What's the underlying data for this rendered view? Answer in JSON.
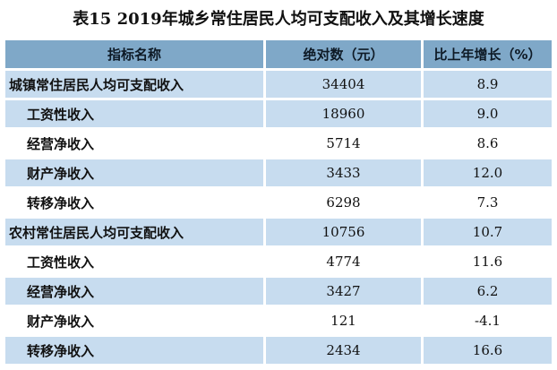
{
  "title": "表15  2019年城乡常住居民人均可支配收入及其增长速度",
  "headers": [
    "指标名称",
    "绝对数（元）",
    "比上年增长（%）"
  ],
  "rows": [
    {
      "name": "城镇常住居民人均可支配收入",
      "value": "34404",
      "growth": "8.9",
      "level": 0
    },
    {
      "name": "工资性收入",
      "value": "18960",
      "growth": "9.0",
      "level": 1
    },
    {
      "name": "经营净收入",
      "value": "5714",
      "growth": "8.6",
      "level": 1
    },
    {
      "name": "财产净收入",
      "value": "3433",
      "growth": "12.0",
      "level": 1
    },
    {
      "name": "转移净收入",
      "value": "6298",
      "growth": "7.3",
      "level": 1
    },
    {
      "name": "农村常住居民人均可支配收入",
      "value": "10756",
      "growth": "10.7",
      "level": 0
    },
    {
      "name": "工资性收入",
      "value": "4774",
      "growth": "11.6",
      "level": 1
    },
    {
      "name": "经营净收入",
      "value": "3427",
      "growth": "6.2",
      "level": 1
    },
    {
      "name": "财产净收入",
      "value": "121",
      "growth": "-4.1",
      "level": 1
    },
    {
      "name": "转移净收入",
      "value": "2434",
      "growth": "16.6",
      "level": 1
    }
  ],
  "colors": {
    "header_bg": "#7fa8c8",
    "stripe_bg": "#c7dcef",
    "plain_bg": "#ffffff"
  }
}
